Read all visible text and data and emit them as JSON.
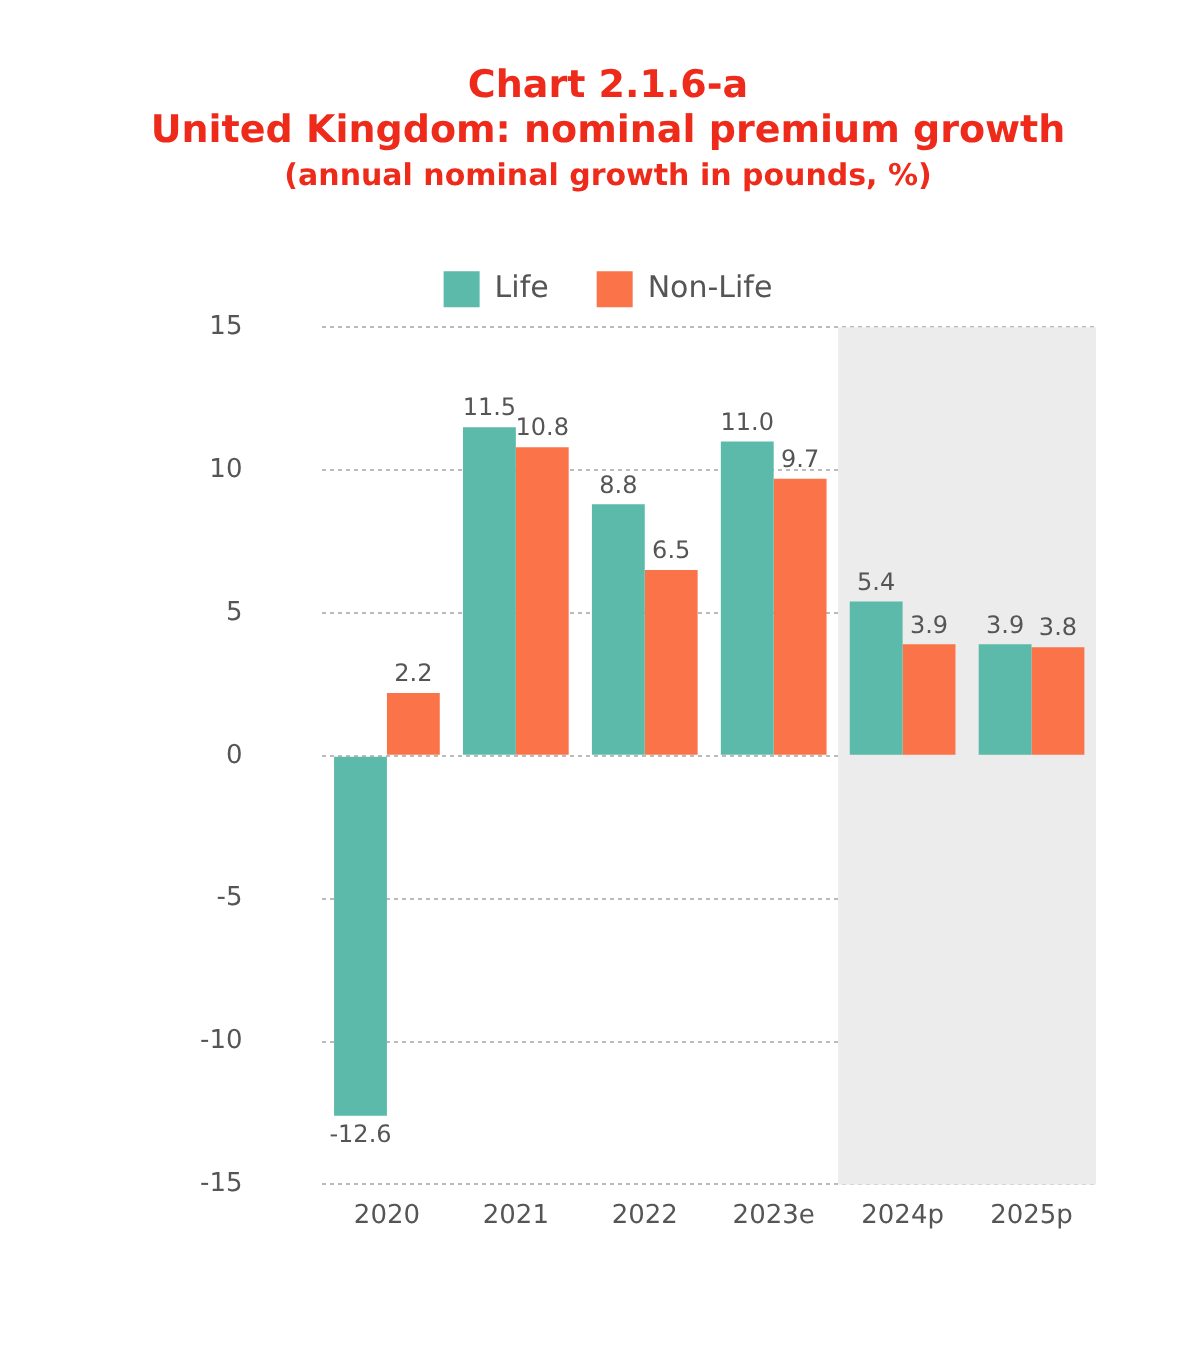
{
  "chart_data": {
    "type": "bar",
    "title": "Chart 2.1.6-a\nUnited Kingdom: nominal premium growth",
    "subtitle": "(annual nominal growth in pounds, %)",
    "categories": [
      "2020",
      "2021",
      "2022",
      "2023e",
      "2024p",
      "2025p"
    ],
    "series": [
      {
        "name": "Life",
        "color": "#5bbaa9",
        "values": [
          -12.6,
          11.5,
          8.8,
          11.0,
          5.4,
          3.9
        ],
        "value_labels": [
          "-12.6",
          "11.5",
          "8.8",
          "11.0",
          "5.4",
          "3.9"
        ]
      },
      {
        "name": "Non-Life",
        "color": "#fb7449",
        "values": [
          2.2,
          10.8,
          6.5,
          9.7,
          3.9,
          3.8
        ],
        "value_labels": [
          "2.2",
          "10.8",
          "6.5",
          "9.7",
          "3.9",
          "3.8"
        ]
      }
    ],
    "ylim": [
      -15,
      15
    ],
    "yticks": [
      -15,
      -10,
      -5,
      0,
      5,
      10,
      15
    ],
    "grid": "y",
    "legend": "top",
    "bands": [
      {
        "axis": "x",
        "from": "2024p",
        "to": "2025p",
        "color": "#ececec"
      }
    ]
  }
}
